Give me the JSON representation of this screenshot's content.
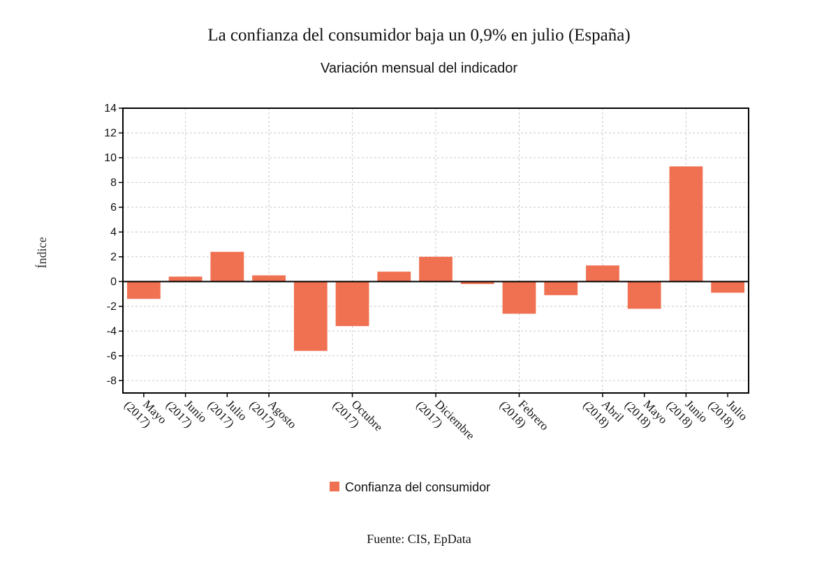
{
  "chart_data": {
    "type": "bar",
    "title": "La confianza del consumidor baja un 0,9% en julio (España)",
    "subtitle": "Variación mensual del indicador",
    "ylabel": "Índice",
    "source": "Fuente: CIS, EpData",
    "ylim": [
      -9,
      14
    ],
    "yticks": [
      14,
      12,
      10,
      8,
      6,
      4,
      2,
      0,
      -2,
      -4,
      -6,
      -8
    ],
    "grid": true,
    "legend_position": "bottom",
    "categories": [
      "2017-05",
      "2017-06",
      "2017-07",
      "2017-08",
      "2017-09",
      "2017-10",
      "2017-11",
      "2017-12",
      "2018-01",
      "2018-02",
      "2018-03",
      "2018-04",
      "2018-05",
      "2018-06",
      "2018-07"
    ],
    "tick_labels": [
      {
        "index": 0,
        "month": "Mayo",
        "year": "(2017)"
      },
      {
        "index": 1,
        "month": "Junio",
        "year": "(2017)"
      },
      {
        "index": 2,
        "month": "Julio",
        "year": "(2017)"
      },
      {
        "index": 3,
        "month": "Agosto",
        "year": "(2017)"
      },
      {
        "index": 5,
        "month": "Octubre",
        "year": "(2017)"
      },
      {
        "index": 7,
        "month": "Diciembre",
        "year": "(2017)"
      },
      {
        "index": 9,
        "month": "Febrero",
        "year": "(2018)"
      },
      {
        "index": 11,
        "month": "Abril",
        "year": "(2018)"
      },
      {
        "index": 12,
        "month": "Mayo",
        "year": "(2018)"
      },
      {
        "index": 13,
        "month": "Junio",
        "year": "(2018)"
      },
      {
        "index": 14,
        "month": "Julio",
        "year": "(2018)"
      }
    ],
    "series": [
      {
        "name": "Confianza del consumidor",
        "color": "#f07152",
        "values": [
          -1.4,
          0.4,
          2.4,
          0.5,
          -5.6,
          -3.6,
          0.8,
          2.0,
          -0.2,
          -2.6,
          -1.1,
          1.3,
          -2.2,
          9.3,
          -0.9
        ]
      }
    ]
  }
}
